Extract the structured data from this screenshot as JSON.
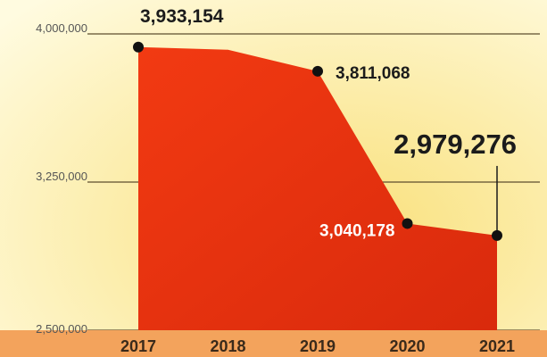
{
  "colors": {
    "background_light": "#fffbe0",
    "background_warm": "#f9e07a",
    "area_fill": "#f23a12",
    "area_dark": "#d92a0c",
    "axis_band": "#f3a35c",
    "gridline": "#5e4e2e",
    "marker": "#111111",
    "label_dark": "#1b1b1b",
    "label_light": "#ffffff"
  },
  "chart_data": {
    "type": "area",
    "categories": [
      "2017",
      "2018",
      "2019",
      "2020",
      "2021"
    ],
    "x": [
      2017,
      2018,
      2019,
      2020,
      2021
    ],
    "values": [
      3933154,
      3920000,
      3811068,
      3040178,
      2979276
    ],
    "markers": [
      {
        "x": 2017,
        "y": 3933154,
        "label": "3,933,154",
        "label_color": "dark"
      },
      {
        "x": 2019,
        "y": 3811068,
        "label": "3,811,068",
        "label_color": "dark"
      },
      {
        "x": 2020,
        "y": 3040178,
        "label": "3,040,178",
        "label_color": "light"
      },
      {
        "x": 2021,
        "y": 2979276,
        "label": "2,979,276",
        "label_color": "dark",
        "emphasis": true
      }
    ],
    "yticks": [
      {
        "value": 2500000,
        "label": "2,500,000"
      },
      {
        "value": 3250000,
        "label": "3,250,000"
      },
      {
        "value": 4000000,
        "label": "4,000,000"
      }
    ],
    "ylim": [
      2500000,
      4000000
    ],
    "title": "",
    "xlabel": "",
    "ylabel": "",
    "grid": true
  }
}
